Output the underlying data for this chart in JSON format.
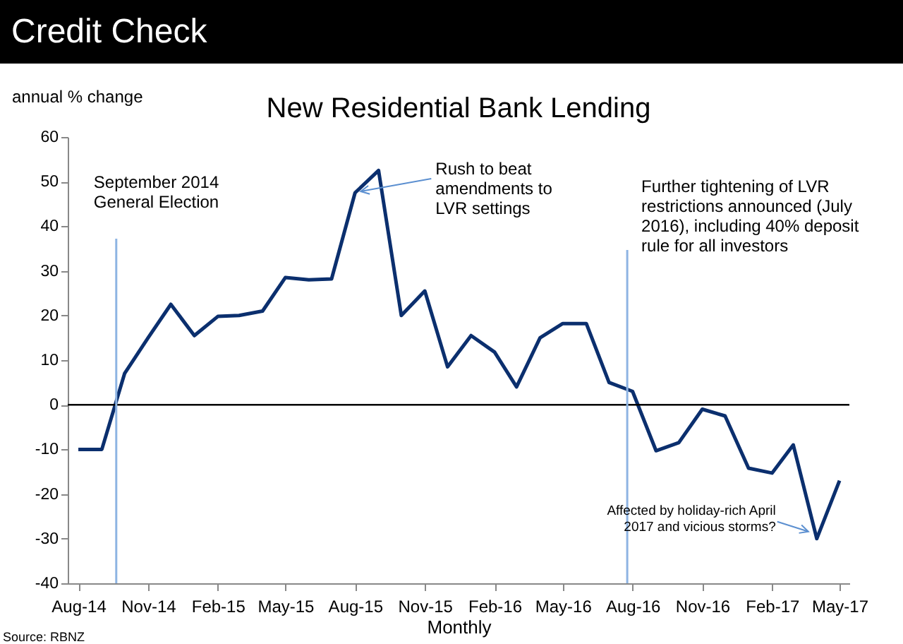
{
  "chart_data": {
    "type": "line",
    "title": "Credit Check",
    "subtitle": "New Residential Bank Lending",
    "xlabel": "Monthly",
    "ylabel": "annual % change",
    "x": [
      "2014-08",
      "2014-09",
      "2014-10",
      "2014-11",
      "2014-12",
      "2015-01",
      "2015-02",
      "2015-03",
      "2015-04",
      "2015-05",
      "2015-06",
      "2015-07",
      "2015-08",
      "2015-09",
      "2015-10",
      "2015-11",
      "2015-12",
      "2016-01",
      "2016-02",
      "2016-03",
      "2016-04",
      "2016-05",
      "2016-06",
      "2016-07",
      "2016-08",
      "2016-09",
      "2016-10",
      "2016-11",
      "2016-12",
      "2017-01",
      "2017-02",
      "2017-03",
      "2017-04",
      "2017-05"
    ],
    "series": [
      {
        "color": "#0b2f6e",
        "values": [
          -10,
          -10,
          7,
          15,
          22.5,
          15.5,
          19.8,
          20,
          21,
          28.5,
          28,
          28.2,
          47.5,
          52.5,
          20,
          25.5,
          8.5,
          15.5,
          11.8,
          4,
          15,
          18.2,
          18.2,
          5,
          3,
          -10.3,
          -8.5,
          -1,
          -2.5,
          -14.2,
          -15.3,
          -9,
          -30,
          -17
        ]
      }
    ],
    "xlim": [
      "2014-07-18",
      "2017-05-14"
    ],
    "xticks": [
      {
        "value": "2014-08",
        "label": "Aug-14"
      },
      {
        "value": "2014-11",
        "label": "Nov-14"
      },
      {
        "value": "2015-02",
        "label": "Feb-15"
      },
      {
        "value": "2015-05",
        "label": "May-15"
      },
      {
        "value": "2015-08",
        "label": "Aug-15"
      },
      {
        "value": "2015-11",
        "label": "Nov-15"
      },
      {
        "value": "2016-02",
        "label": "Feb-16"
      },
      {
        "value": "2016-05",
        "label": "May-16"
      },
      {
        "value": "2016-08",
        "label": "Aug-16"
      },
      {
        "value": "2016-11",
        "label": "Nov-16"
      },
      {
        "value": "2017-02",
        "label": "Feb-17"
      },
      {
        "value": "2017-05",
        "label": "May-17"
      }
    ],
    "ylim": [
      -40,
      60
    ],
    "yticks": [
      -40,
      -30,
      -20,
      -10,
      0,
      10,
      20,
      30,
      40,
      50,
      60
    ],
    "ref_lines": [
      {
        "axis": "y",
        "value": 0,
        "color": "#000000"
      },
      {
        "axis": "x",
        "value": "2014-09-20",
        "label": "September 2014\nGeneral Election",
        "color": "#8eb4e3"
      },
      {
        "axis": "x",
        "value": "2016-07-25",
        "label": "Further tightening of LVR\nrestrictions announced (July\n2016), including 40% deposit\nrule for all investors",
        "color": "#8eb4e3"
      }
    ],
    "annotations": [
      {
        "text": "Rush to beat\namendments to\nLVR settings",
        "x": "2015-08",
        "y": 47.5
      },
      {
        "text": "Affected by holiday-rich April\n2017 and vicious storms?",
        "x": "2017-04",
        "y": -30
      },
      "Source: RBNZ"
    ],
    "grid": false,
    "marker": "none",
    "line_style": "solid"
  }
}
